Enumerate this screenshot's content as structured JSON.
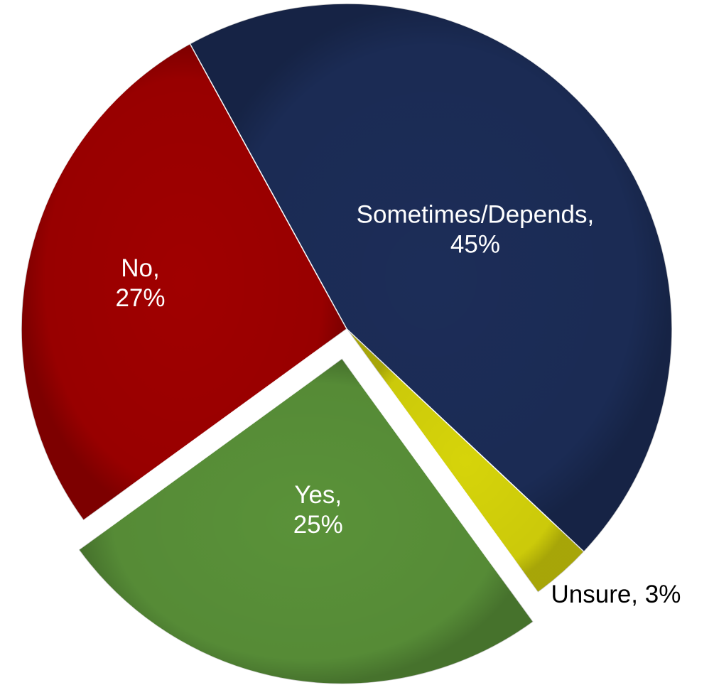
{
  "chart_data": {
    "type": "pie",
    "slices": [
      {
        "label": "Sometimes/Depends",
        "value": 45,
        "display": "45%",
        "color": "#1c2d58",
        "label_color": "#ffffff",
        "exploded": false
      },
      {
        "label": "Unsure",
        "value": 3,
        "display": "3%",
        "color": "#d6d40a",
        "label_color": "#000000",
        "exploded": false
      },
      {
        "label": "Yes",
        "value": 25,
        "display": "25%",
        "color": "#5a9239",
        "label_color": "#ffffff",
        "exploded": true
      },
      {
        "label": "No",
        "value": 27,
        "display": "27%",
        "color": "#a00000",
        "label_color": "#ffffff",
        "exploded": false
      }
    ]
  }
}
